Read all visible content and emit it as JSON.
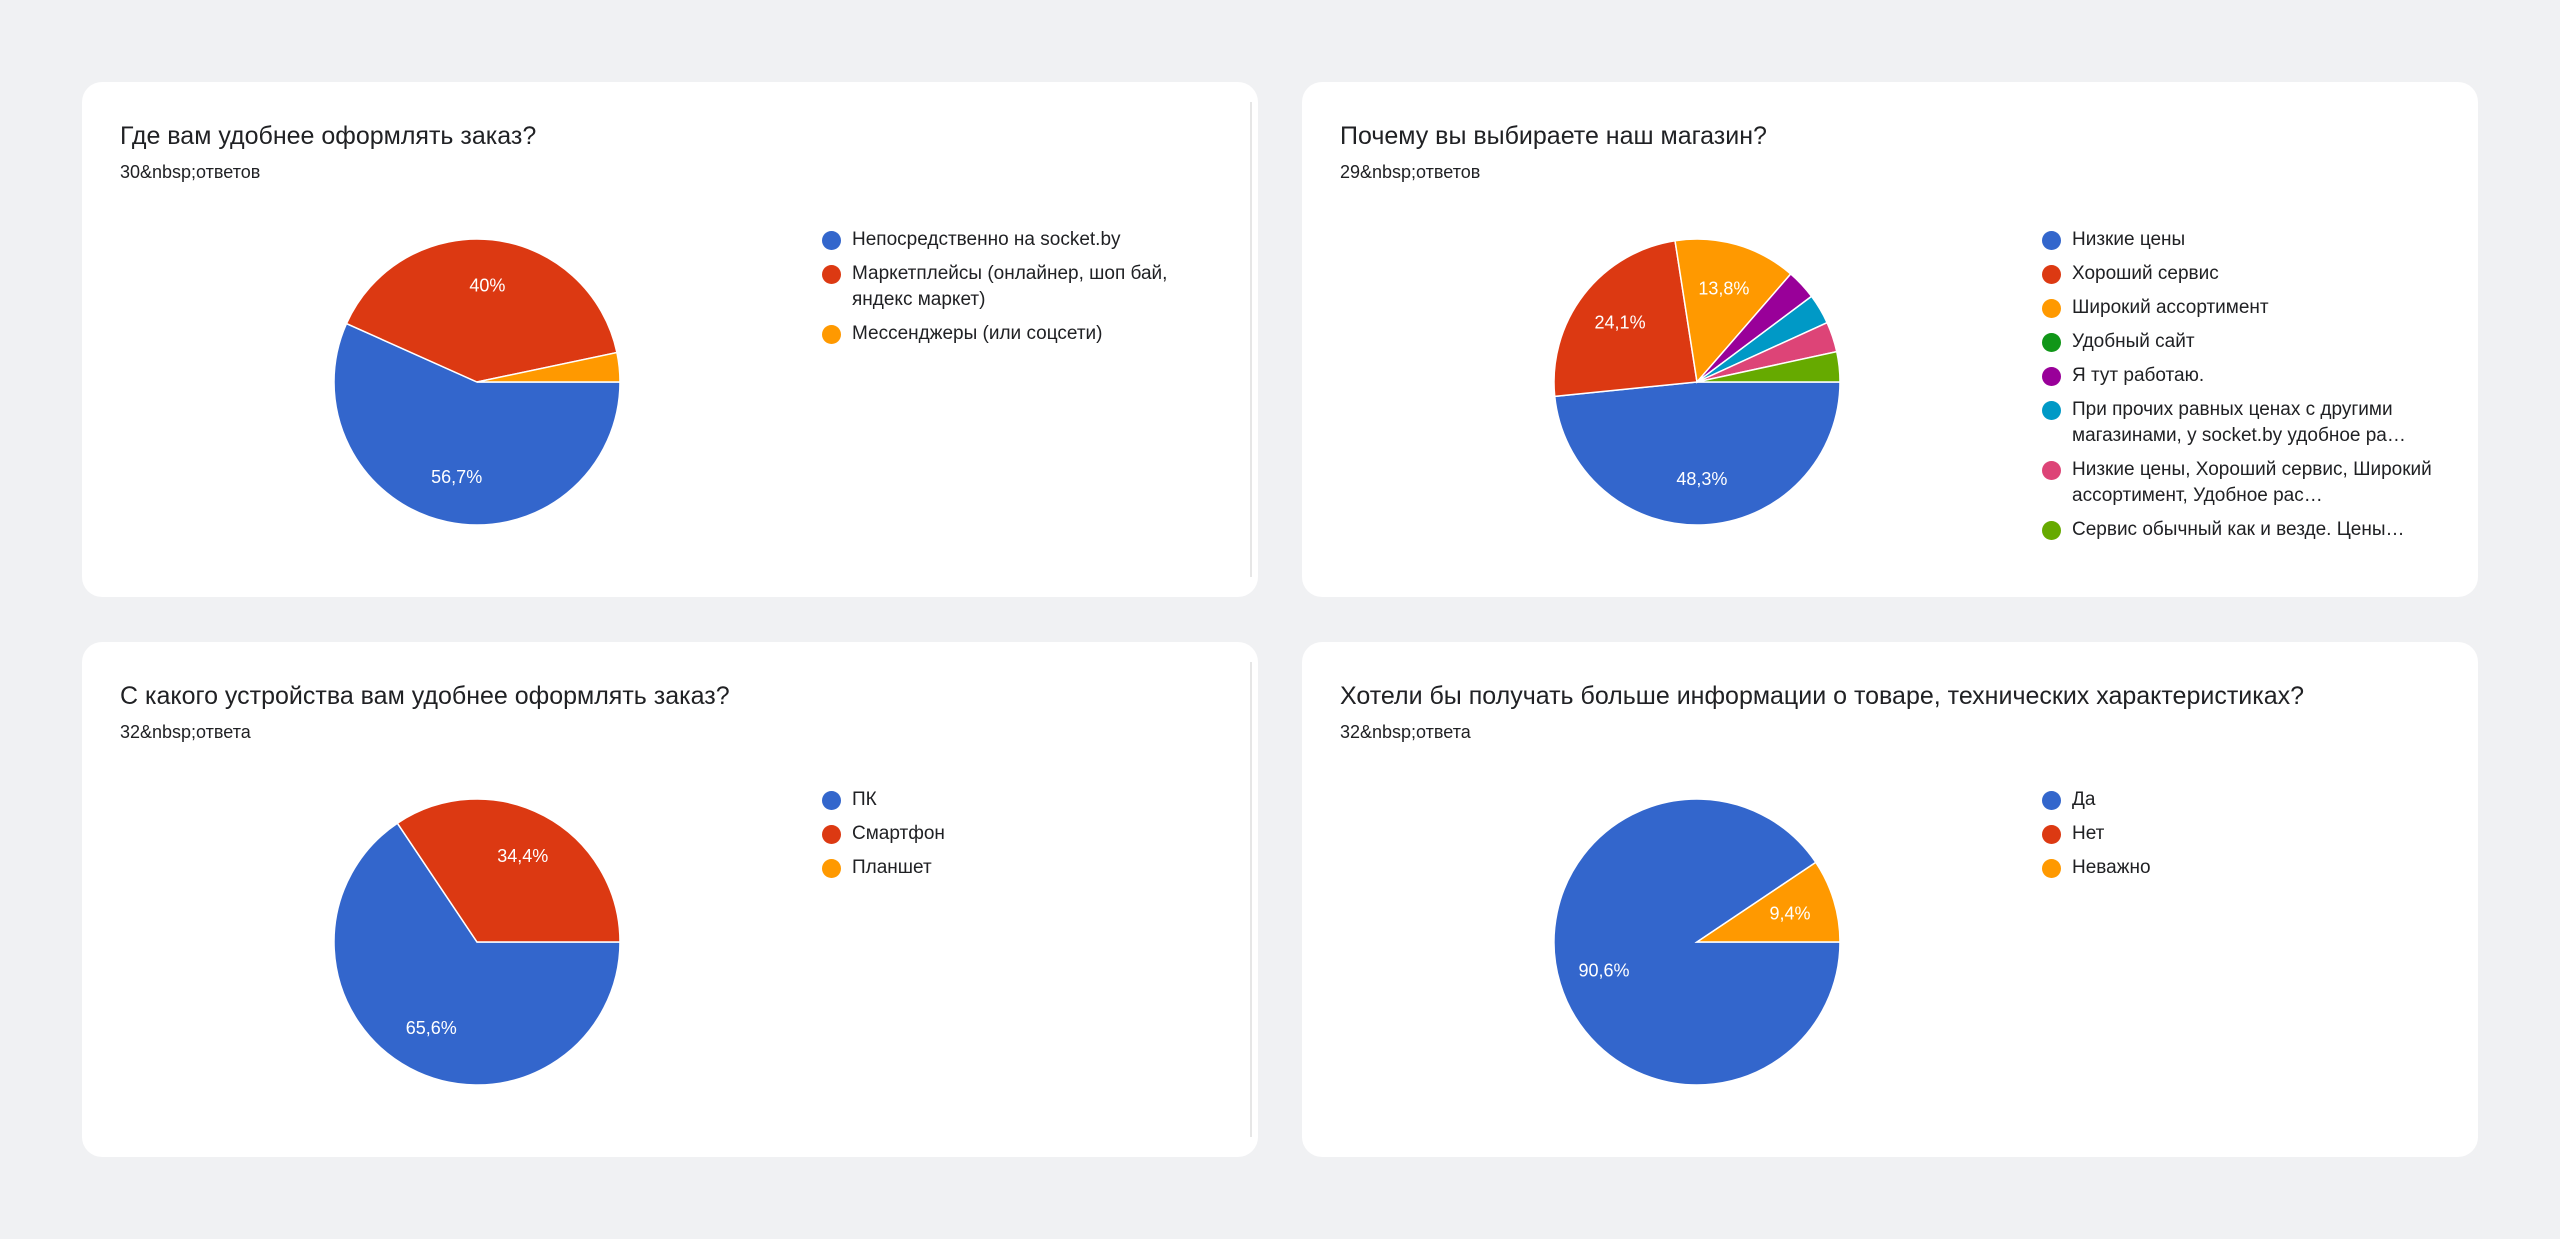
{
  "chart_data": [
    {
      "type": "pie",
      "title": "Где вам удобнее оформлять заказ?",
      "subtitle": "30&nbsp;ответов",
      "categories": [
        "Непосредственно на socket.by",
        "Маркетплейсы (онлайнер, шоп бай, яндекс маркет)",
        "Мессенджеры (или соцсети)"
      ],
      "values": [
        56.7,
        40.0,
        3.3
      ],
      "data_labels": [
        "56,7%",
        "40%",
        ""
      ],
      "colors": [
        "#3366cc",
        "#dc3912",
        "#ff9900"
      ],
      "legend": "right"
    },
    {
      "type": "pie",
      "title": "Почему вы выбираете наш магазин?",
      "subtitle": "29&nbsp;ответов",
      "categories": [
        "Низкие цены",
        "Хороший сервис",
        "Широкий ассортимент",
        "Удобный сайт",
        "Я тут работаю.",
        "При прочих равных ценах с другими магазинами, у socket.by удобное ра…",
        "Низкие цены, Хороший сервис, Широкий ассортимент, Удобное рас…",
        "Сервис обычный как и везде. Цены…"
      ],
      "values": [
        48.3,
        24.1,
        13.8,
        0,
        3.4,
        3.4,
        3.4,
        3.4
      ],
      "data_labels": [
        "48,3%",
        "24,1%",
        "13,8%",
        "",
        "",
        "",
        "",
        ""
      ],
      "colors": [
        "#3366cc",
        "#dc3912",
        "#ff9900",
        "#109618",
        "#990099",
        "#0099c6",
        "#dd4477",
        "#66aa00"
      ],
      "legend": "right"
    },
    {
      "type": "pie",
      "title": "С какого устройства вам удобнее оформлять заказ?",
      "subtitle": "32&nbsp;ответа",
      "categories": [
        "ПК",
        "Смартфон",
        "Планшет"
      ],
      "values": [
        65.6,
        34.4,
        0
      ],
      "data_labels": [
        "65,6%",
        "34,4%",
        ""
      ],
      "colors": [
        "#3366cc",
        "#dc3912",
        "#ff9900"
      ],
      "legend": "right"
    },
    {
      "type": "pie",
      "title": "Хотели бы получать больше информации о товаре, технических характеристиках?",
      "subtitle": "32&nbsp;ответа",
      "categories": [
        "Да",
        "Нет",
        "Неважно"
      ],
      "values": [
        90.6,
        0,
        9.4
      ],
      "data_labels": [
        "90,6%",
        "",
        "9,4%"
      ],
      "colors": [
        "#3366cc",
        "#dc3912",
        "#ff9900"
      ],
      "legend": "right"
    }
  ]
}
